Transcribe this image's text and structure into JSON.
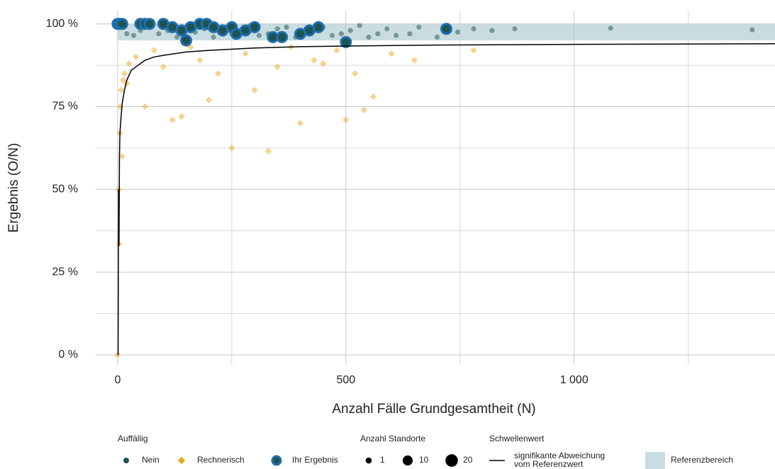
{
  "chart_data": {
    "type": "scatter",
    "x_label": "Anzahl Fälle Grundgesamtheit (N)",
    "y_label": "Ergebnis (O/N)",
    "xlim": [
      -48,
      1440
    ],
    "ylim": [
      -3,
      104
    ],
    "xticks": [
      0,
      500,
      {
        "value": 1000,
        "label": "1 000"
      }
    ],
    "yticks": [
      {
        "value": 0,
        "label": "0 %"
      },
      {
        "value": 25,
        "label": "25 %"
      },
      {
        "value": 50,
        "label": "50 %"
      },
      {
        "value": 75,
        "label": "75 %"
      },
      {
        "value": 100,
        "label": "100 %"
      }
    ],
    "x_minor_grid": [
      250,
      750,
      1250
    ],
    "y_minor_grid": [
      12.5,
      37.5,
      62.5,
      87.5
    ],
    "grid": true,
    "reference_range": {
      "name": "Referenzbereich",
      "ylim": [
        95,
        100
      ],
      "color": "#c9dde0"
    },
    "legend_title": "Auffällig",
    "series": [
      {
        "name": "Nein",
        "color": "#1d5350",
        "marker": "circle",
        "x": [
          5,
          20,
          35,
          50,
          70,
          90,
          110,
          130,
          150,
          170,
          190,
          210,
          230,
          250,
          270,
          290,
          310,
          330,
          350,
          370,
          390,
          410,
          430,
          450,
          470,
          490,
          510,
          530,
          550,
          570,
          590,
          610,
          640,
          660,
          700,
          720,
          745,
          780,
          820,
          870,
          1080,
          1390
        ],
        "values": [
          99,
          97,
          96.5,
          98,
          99.5,
          97,
          98,
          96,
          99,
          97.5,
          98.5,
          96,
          99,
          97,
          98,
          99.5,
          96.5,
          97,
          98.5,
          99,
          96,
          97.5,
          98,
          99,
          96.5,
          97,
          98,
          99.5,
          96,
          97,
          98.5,
          96.5,
          97,
          99,
          96,
          98,
          97.5,
          98.5,
          98,
          98.5,
          98.7,
          98.2
        ]
      },
      {
        "name": "Rechnerisch",
        "color": "#e9a825",
        "marker": "diamond",
        "x": [
          0,
          2,
          3,
          5,
          6,
          8,
          10,
          12,
          15,
          20,
          25,
          40,
          60,
          80,
          100,
          120,
          140,
          160,
          180,
          200,
          220,
          250,
          280,
          300,
          330,
          350,
          380,
          400,
          430,
          450,
          480,
          500,
          520,
          540,
          560,
          600,
          650,
          780
        ],
        "values": [
          0,
          50,
          33.5,
          67,
          75,
          80,
          60,
          83,
          85,
          82,
          88,
          90,
          75,
          92,
          87,
          71,
          72,
          93,
          89,
          77,
          85,
          62.5,
          91,
          80,
          61.5,
          87,
          93,
          70,
          89,
          88,
          92,
          71,
          85,
          74,
          78,
          91,
          89,
          92
        ]
      },
      {
        "name": "Ihr Ergebnis",
        "color": "#1d5350",
        "stroke": "#1f6fb0",
        "marker": "circle",
        "x": [
          0,
          5,
          10,
          50,
          60,
          70,
          100,
          120,
          140,
          150,
          160,
          180,
          195,
          210,
          230,
          250,
          260,
          280,
          300,
          340,
          360,
          400,
          420,
          440,
          500,
          720
        ],
        "values": [
          100,
          100,
          100,
          100,
          100,
          100,
          100,
          99,
          98,
          95,
          99,
          100,
          100,
          99,
          98,
          99,
          97,
          98,
          99,
          96,
          96,
          97,
          98,
          99,
          94.5,
          98.5
        ]
      }
    ],
    "threshold": {
      "title": "Schwellenwert",
      "name": "signifikante Abweichung vom Referenzwert",
      "color": "#000000",
      "x": [
        1,
        2,
        3,
        4,
        5,
        7,
        10,
        15,
        20,
        30,
        40,
        60,
        80,
        100,
        150,
        200,
        300,
        400,
        500,
        700,
        1000,
        1440
      ],
      "values": [
        0,
        50,
        33,
        60,
        67,
        71,
        76,
        80,
        83,
        86,
        87,
        89,
        90,
        90.5,
        91.5,
        92,
        92.7,
        93.1,
        93.3,
        93.6,
        93.8,
        94
      ]
    },
    "size_legend": {
      "title": "Anzahl Standorte",
      "values": [
        1,
        10,
        20
      ]
    }
  }
}
